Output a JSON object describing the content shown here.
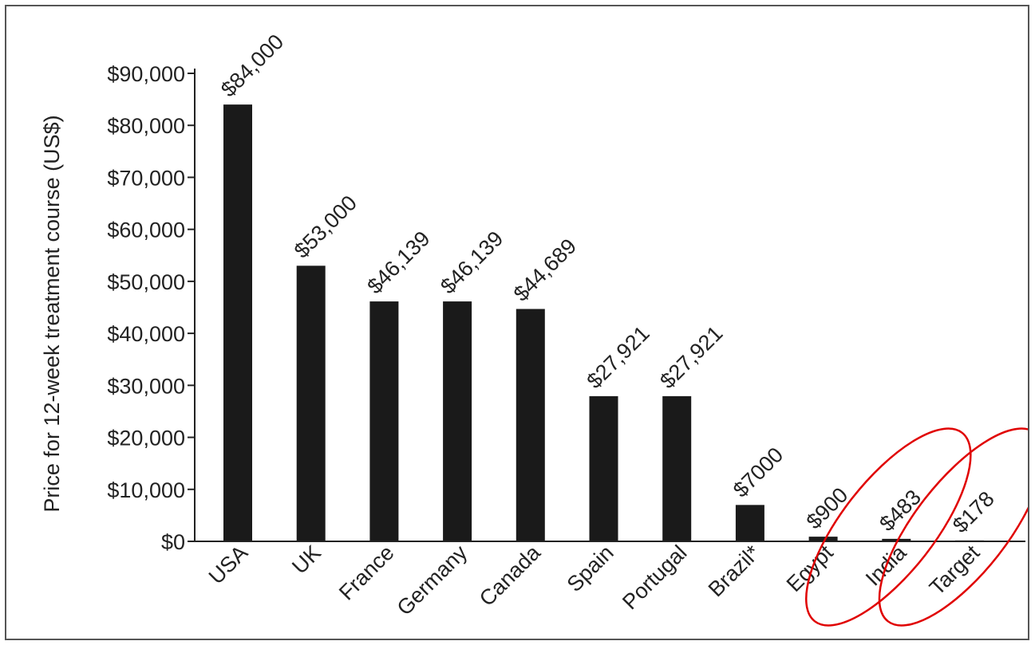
{
  "chart_data": {
    "type": "bar",
    "title": "",
    "xlabel": "",
    "ylabel": "Price for 12-week treatment course (US$)",
    "ylim": [
      0,
      90000
    ],
    "yticks": [
      0,
      10000,
      20000,
      30000,
      40000,
      50000,
      60000,
      70000,
      80000,
      90000
    ],
    "ytick_labels": [
      "$0",
      "$10,000",
      "$20,000",
      "$30,000",
      "$40,000",
      "$50,000",
      "$60,000",
      "$70,000",
      "$80,000",
      "$90,000"
    ],
    "categories": [
      "USA",
      "UK",
      "France",
      "Germany",
      "Canada",
      "Spain",
      "Portugal",
      "Brazil*",
      "Egypt",
      "India",
      "Target"
    ],
    "values": [
      84000,
      53000,
      46139,
      46139,
      44689,
      27921,
      27921,
      7000,
      900,
      483,
      178
    ],
    "data_labels": [
      "$84,000",
      "$53,000",
      "$46,139",
      "$46,139",
      "$44,689",
      "$27,921",
      "$27,921",
      "$7000",
      "$900",
      "$483",
      "$178"
    ],
    "grid": false,
    "legend": "none",
    "bar_color": "#1a1a1a",
    "highlights": [
      {
        "category": "India",
        "color": "#e00000"
      },
      {
        "category": "Target",
        "color": "#e00000"
      }
    ]
  }
}
